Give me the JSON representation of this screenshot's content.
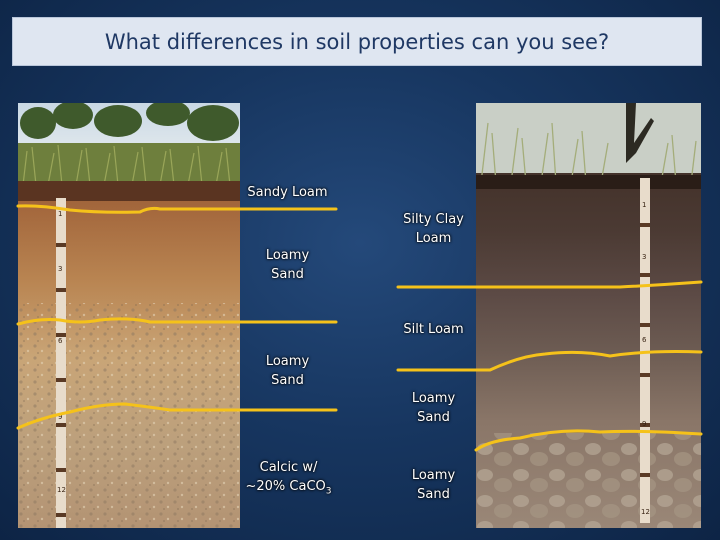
{
  "title": "What differences in soil properties can you see?",
  "left_profile": {
    "horizons": [
      {
        "line1": "Sandy Loam",
        "line2": ""
      },
      {
        "line1": "Loamy",
        "line2": "Sand"
      },
      {
        "line1": "Loamy",
        "line2": "Sand"
      },
      {
        "line1": "Calcic w/",
        "line2": "~20%  CaCO",
        "sub": "3"
      }
    ],
    "ruler_marks": [
      "1",
      "3",
      "6",
      "9",
      "12"
    ]
  },
  "right_profile": {
    "horizons": [
      {
        "line1": "Silty Clay",
        "line2": "Loam"
      },
      {
        "line1": "Silt Loam",
        "line2": ""
      },
      {
        "line1": "Loamy",
        "line2": "Sand"
      },
      {
        "line1": "Loamy",
        "line2": "Sand"
      }
    ],
    "ruler_marks": [
      "1",
      "3",
      "6",
      "9",
      "12"
    ]
  },
  "colors": {
    "boundary_line": "#f5c21a",
    "title_text": "#1f3864",
    "title_box": "#dfe6f1"
  }
}
